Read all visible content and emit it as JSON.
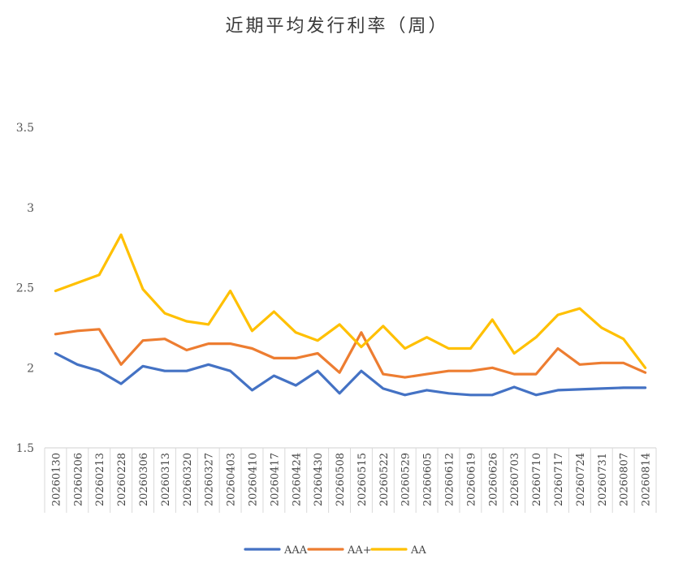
{
  "chart_data": {
    "type": "line",
    "title": "近期平均发行利率（周）",
    "ylim": [
      1.5,
      3.5
    ],
    "yticks": [
      "1.5",
      "2",
      "2.5",
      "3",
      "3.5"
    ],
    "categories": [
      "20260130",
      "20260206",
      "20260213",
      "20260228",
      "20260306",
      "20260313",
      "20260320",
      "20260327",
      "20260403",
      "20260410",
      "20260417",
      "20260424",
      "20260430",
      "20260508",
      "20260515",
      "20260522",
      "20260529",
      "20260605",
      "20260612",
      "20260619",
      "20260626",
      "20260703",
      "20260710",
      "20260717",
      "20260724",
      "20260731",
      "20260807",
      "20260814"
    ],
    "grid": false,
    "legend": "bottom",
    "series": [
      {
        "name": "AAA",
        "color": "#4472C4",
        "values": [
          2.09,
          2.02,
          1.98,
          1.9,
          2.01,
          1.98,
          1.98,
          2.02,
          1.98,
          1.86,
          1.95,
          1.89,
          1.98,
          1.84,
          1.98,
          1.87,
          1.83,
          1.86,
          1.84,
          1.83,
          1.83,
          1.88,
          1.83,
          1.86,
          1.865,
          1.87,
          1.875,
          1.875
        ]
      },
      {
        "name": "AA+",
        "color": "#ED7D31",
        "values": [
          2.21,
          2.23,
          2.24,
          2.02,
          2.17,
          2.18,
          2.11,
          2.15,
          2.15,
          2.12,
          2.06,
          2.06,
          2.09,
          1.97,
          2.22,
          1.96,
          1.94,
          1.96,
          1.98,
          1.98,
          2.0,
          1.96,
          1.96,
          2.12,
          2.02,
          2.03,
          2.03,
          1.97
        ]
      },
      {
        "name": "AA",
        "color": "#FFC000",
        "values": [
          2.48,
          2.53,
          2.58,
          2.83,
          2.49,
          2.34,
          2.29,
          2.27,
          2.48,
          2.23,
          2.35,
          2.22,
          2.17,
          2.27,
          2.13,
          2.26,
          2.12,
          2.19,
          2.12,
          2.12,
          2.3,
          2.09,
          2.19,
          2.33,
          2.37,
          2.25,
          2.18,
          2.0
        ]
      }
    ]
  }
}
